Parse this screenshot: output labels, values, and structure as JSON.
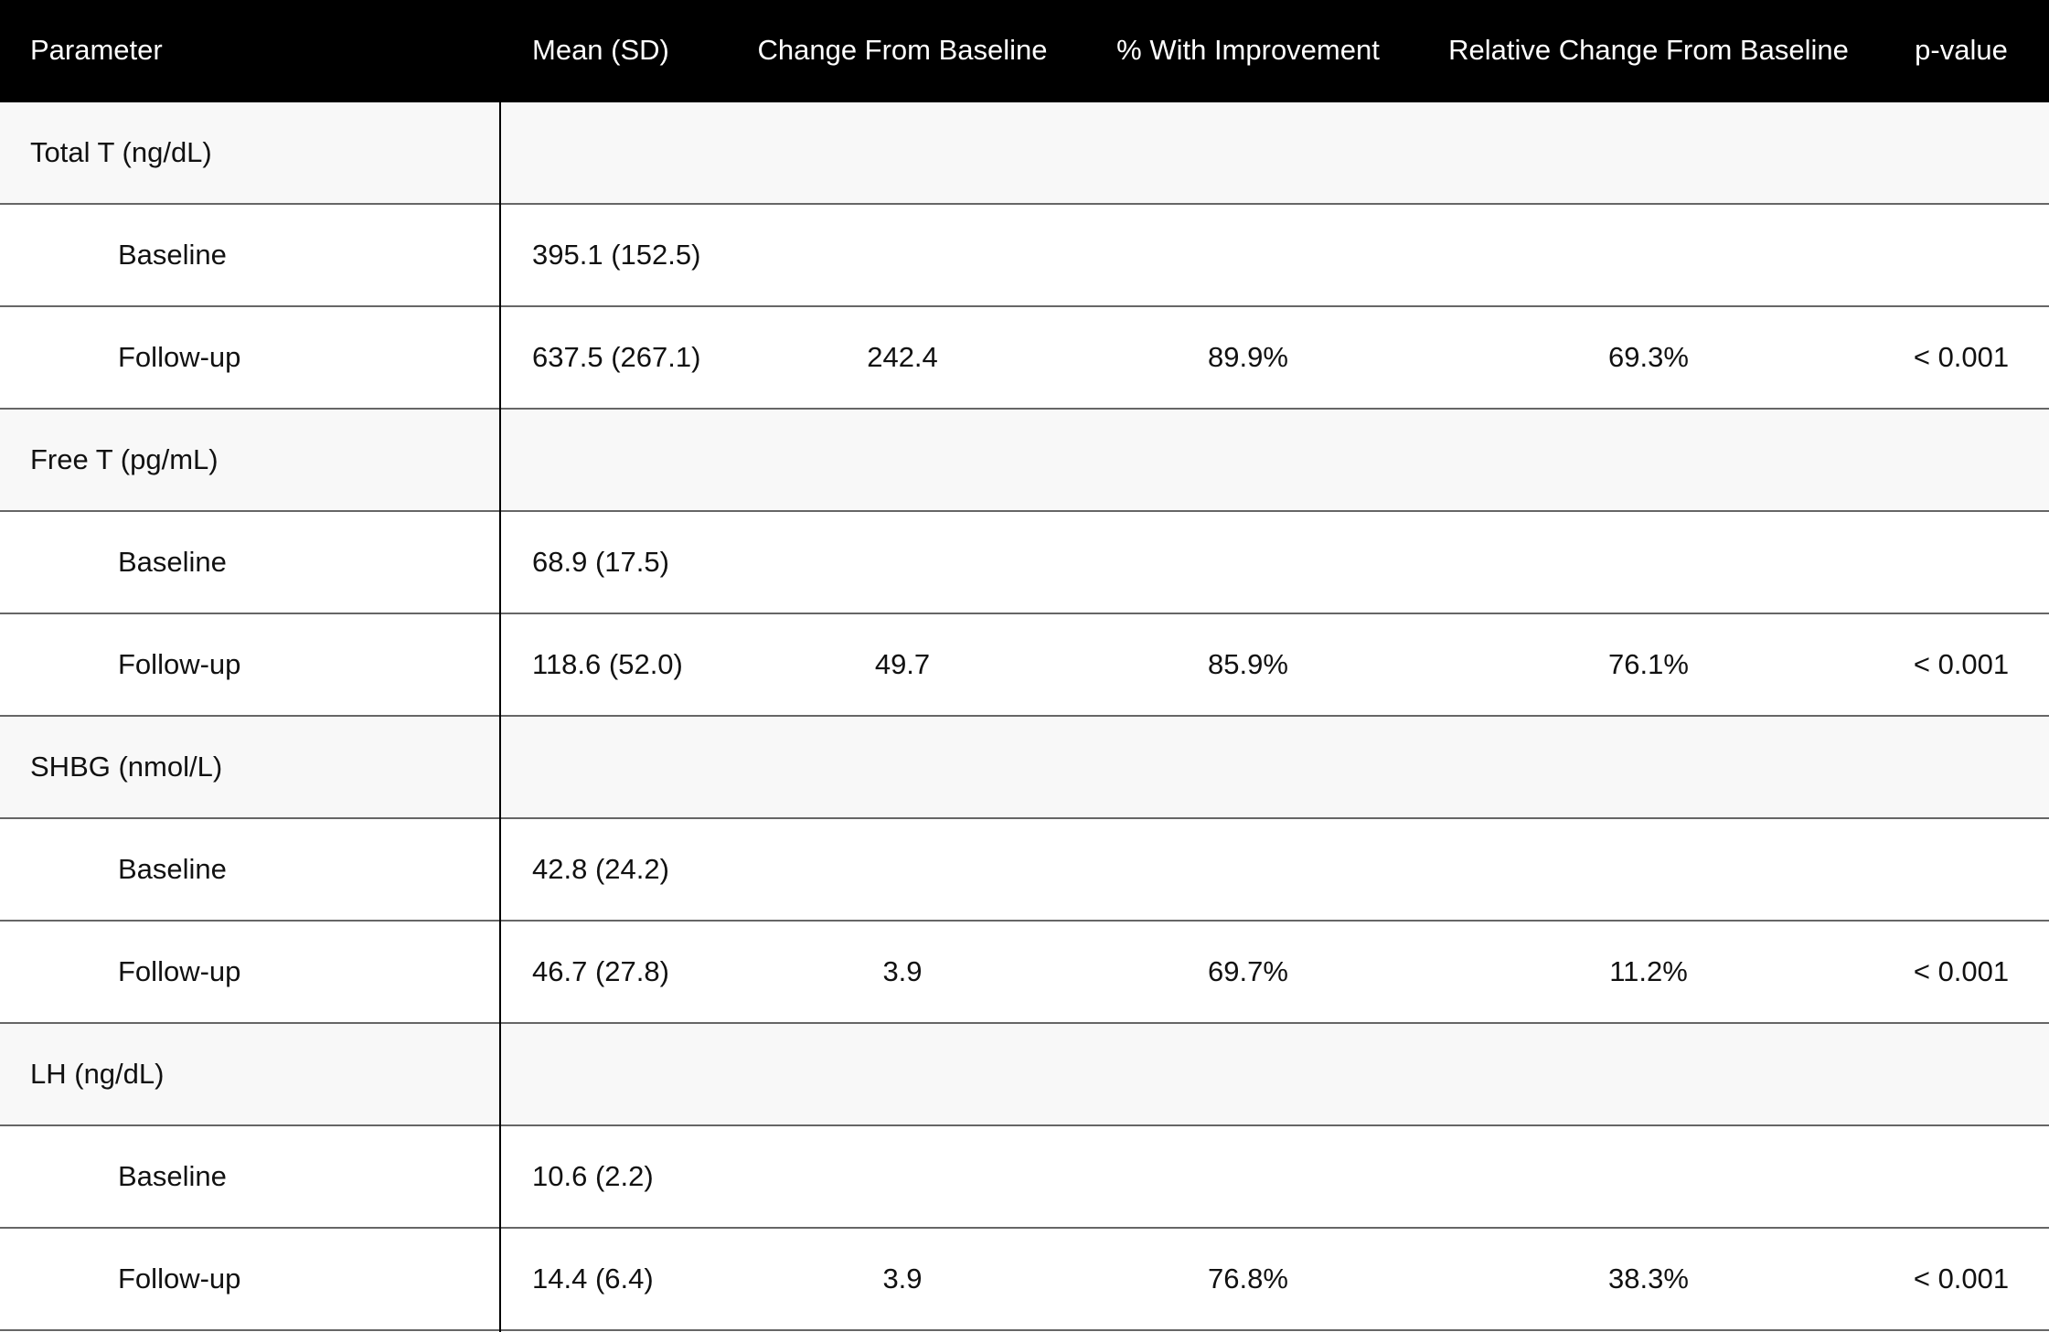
{
  "table": {
    "columns": [
      "Parameter",
      "Mean (SD)",
      "Change From Baseline",
      "% With Improvement",
      "Relative Change From Baseline",
      "p-value"
    ],
    "groups": [
      {
        "name": "Total T (ng/dL)",
        "rows": [
          {
            "label": "Baseline",
            "mean": "395.1 (152.5)"
          },
          {
            "label": "Follow-up",
            "mean": "637.5 (267.1)",
            "change": "242.4",
            "improvement": "89.9%",
            "relative": "69.3%",
            "p_value": "< 0.001"
          }
        ]
      },
      {
        "name": "Free T (pg/mL)",
        "rows": [
          {
            "label": "Baseline",
            "mean": "68.9 (17.5)"
          },
          {
            "label": "Follow-up",
            "mean": "118.6 (52.0)",
            "change": "49.7",
            "improvement": "85.9%",
            "relative": "76.1%",
            "p_value": "< 0.001"
          }
        ]
      },
      {
        "name": "SHBG (nmol/L)",
        "rows": [
          {
            "label": "Baseline",
            "mean": "42.8 (24.2)"
          },
          {
            "label": "Follow-up",
            "mean": "46.7 (27.8)",
            "change": "3.9",
            "improvement": "69.7%",
            "relative": "11.2%",
            "p_value": "< 0.001"
          }
        ]
      },
      {
        "name": "LH (ng/dL)",
        "rows": [
          {
            "label": "Baseline",
            "mean": "10.6 (2.2)"
          },
          {
            "label": "Follow-up",
            "mean": "14.4 (6.4)",
            "change": "3.9",
            "improvement": "76.8%",
            "relative": "38.3%",
            "p_value": "< 0.001"
          }
        ]
      }
    ]
  }
}
